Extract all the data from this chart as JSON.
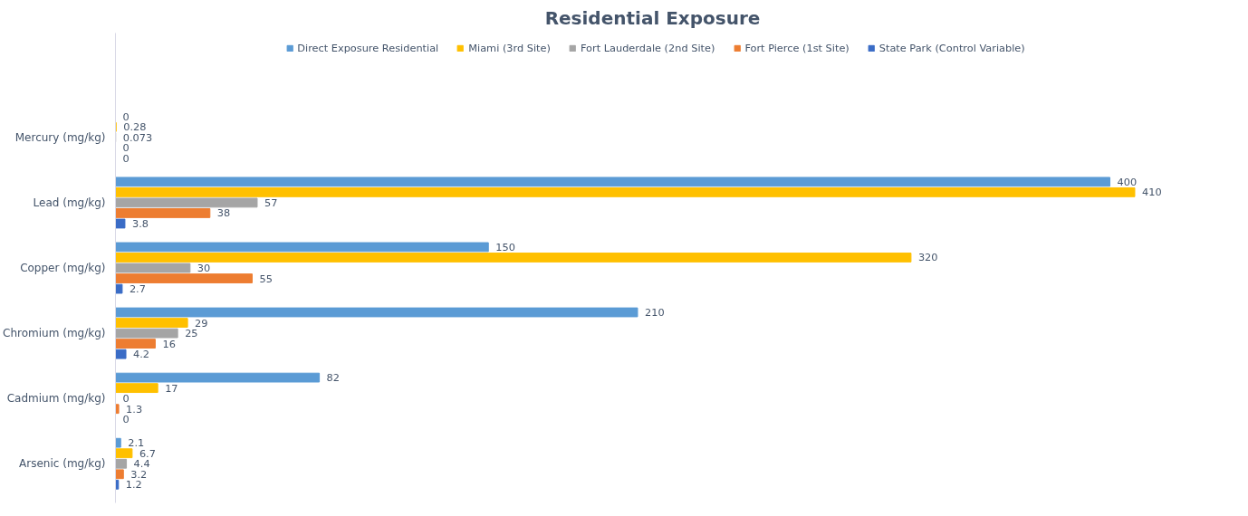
{
  "chart_data": {
    "type": "bar",
    "orientation": "horizontal",
    "title": "Residential  Exposure",
    "data_labels": true,
    "legend": "top",
    "grid": false,
    "categories": [
      "Mercury (mg/kg)",
      "Lead (mg/kg)",
      "Copper (mg/kg)",
      "Chromium (mg/kg)",
      "Cadmium (mg/kg)",
      "Arsenic (mg/kg)"
    ],
    "series": [
      {
        "name": "Direct Exposure Residential",
        "color": "#5b9bd5",
        "values": [
          0,
          400,
          150,
          210,
          82,
          2.1
        ]
      },
      {
        "name": "Miami (3rd Site)",
        "color": "#ffc000",
        "values": [
          0.28,
          410,
          320,
          29,
          17,
          6.7
        ]
      },
      {
        "name": "Fort Lauderdale (2nd Site)",
        "color": "#a5a5a5",
        "values": [
          0.073,
          57,
          30,
          25,
          0,
          4.4
        ]
      },
      {
        "name": "Fort Pierce (1st Site)",
        "color": "#ed7d31",
        "values": [
          0,
          38,
          55,
          16,
          1.3,
          3.2
        ]
      },
      {
        "name": "State Park (Control Variable)",
        "color": "#3a6cc6",
        "values": [
          0,
          3.8,
          2.7,
          4.2,
          0,
          1.2
        ]
      }
    ]
  }
}
